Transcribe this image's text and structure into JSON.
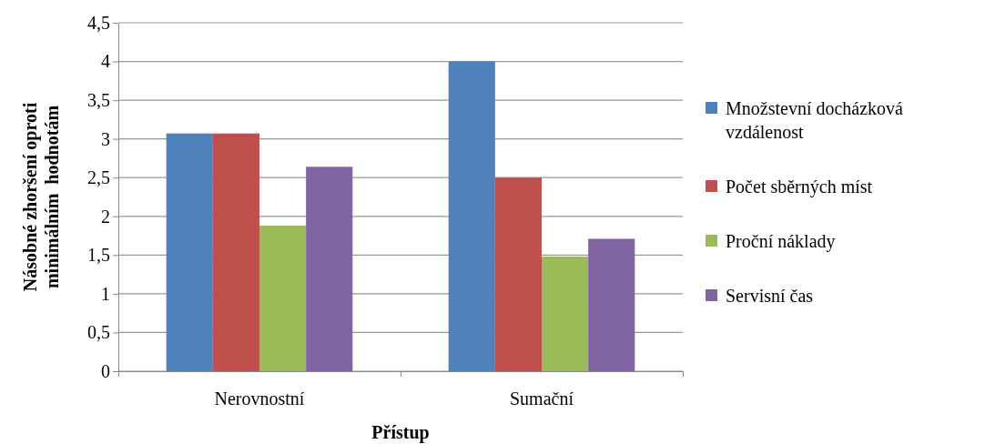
{
  "chart_data": {
    "type": "bar",
    "categories": [
      "Nerovnostní",
      "Sumační"
    ],
    "series": [
      {
        "name": "Množstevní docházková vzdálenost",
        "color": "#4f81bd",
        "values": [
          3.07,
          4.0
        ]
      },
      {
        "name": "Počet sběrných míst",
        "color": "#c0504d",
        "values": [
          3.07,
          2.5
        ]
      },
      {
        "name": "Proční náklady",
        "color": "#9bbb59",
        "values": [
          1.88,
          1.48
        ]
      },
      {
        "name": "Servisní čas",
        "color": "#8064a2",
        "values": [
          2.64,
          1.71
        ]
      }
    ],
    "xlabel": "Přístup",
    "ylabel": "Násobné zhoršení oproti minimálním  hodnotám",
    "ylim": [
      0,
      4.5
    ],
    "yticks": [
      0,
      {
        "value": 0.5,
        "label": "0,5"
      },
      1,
      {
        "value": 1.5,
        "label": "1,5"
      },
      2,
      {
        "value": 2.5,
        "label": "2,5"
      },
      3,
      {
        "value": 3.5,
        "label": "3,5"
      },
      4,
      {
        "value": 4.5,
        "label": "4,5"
      }
    ],
    "grid": "y",
    "legend": "right"
  }
}
